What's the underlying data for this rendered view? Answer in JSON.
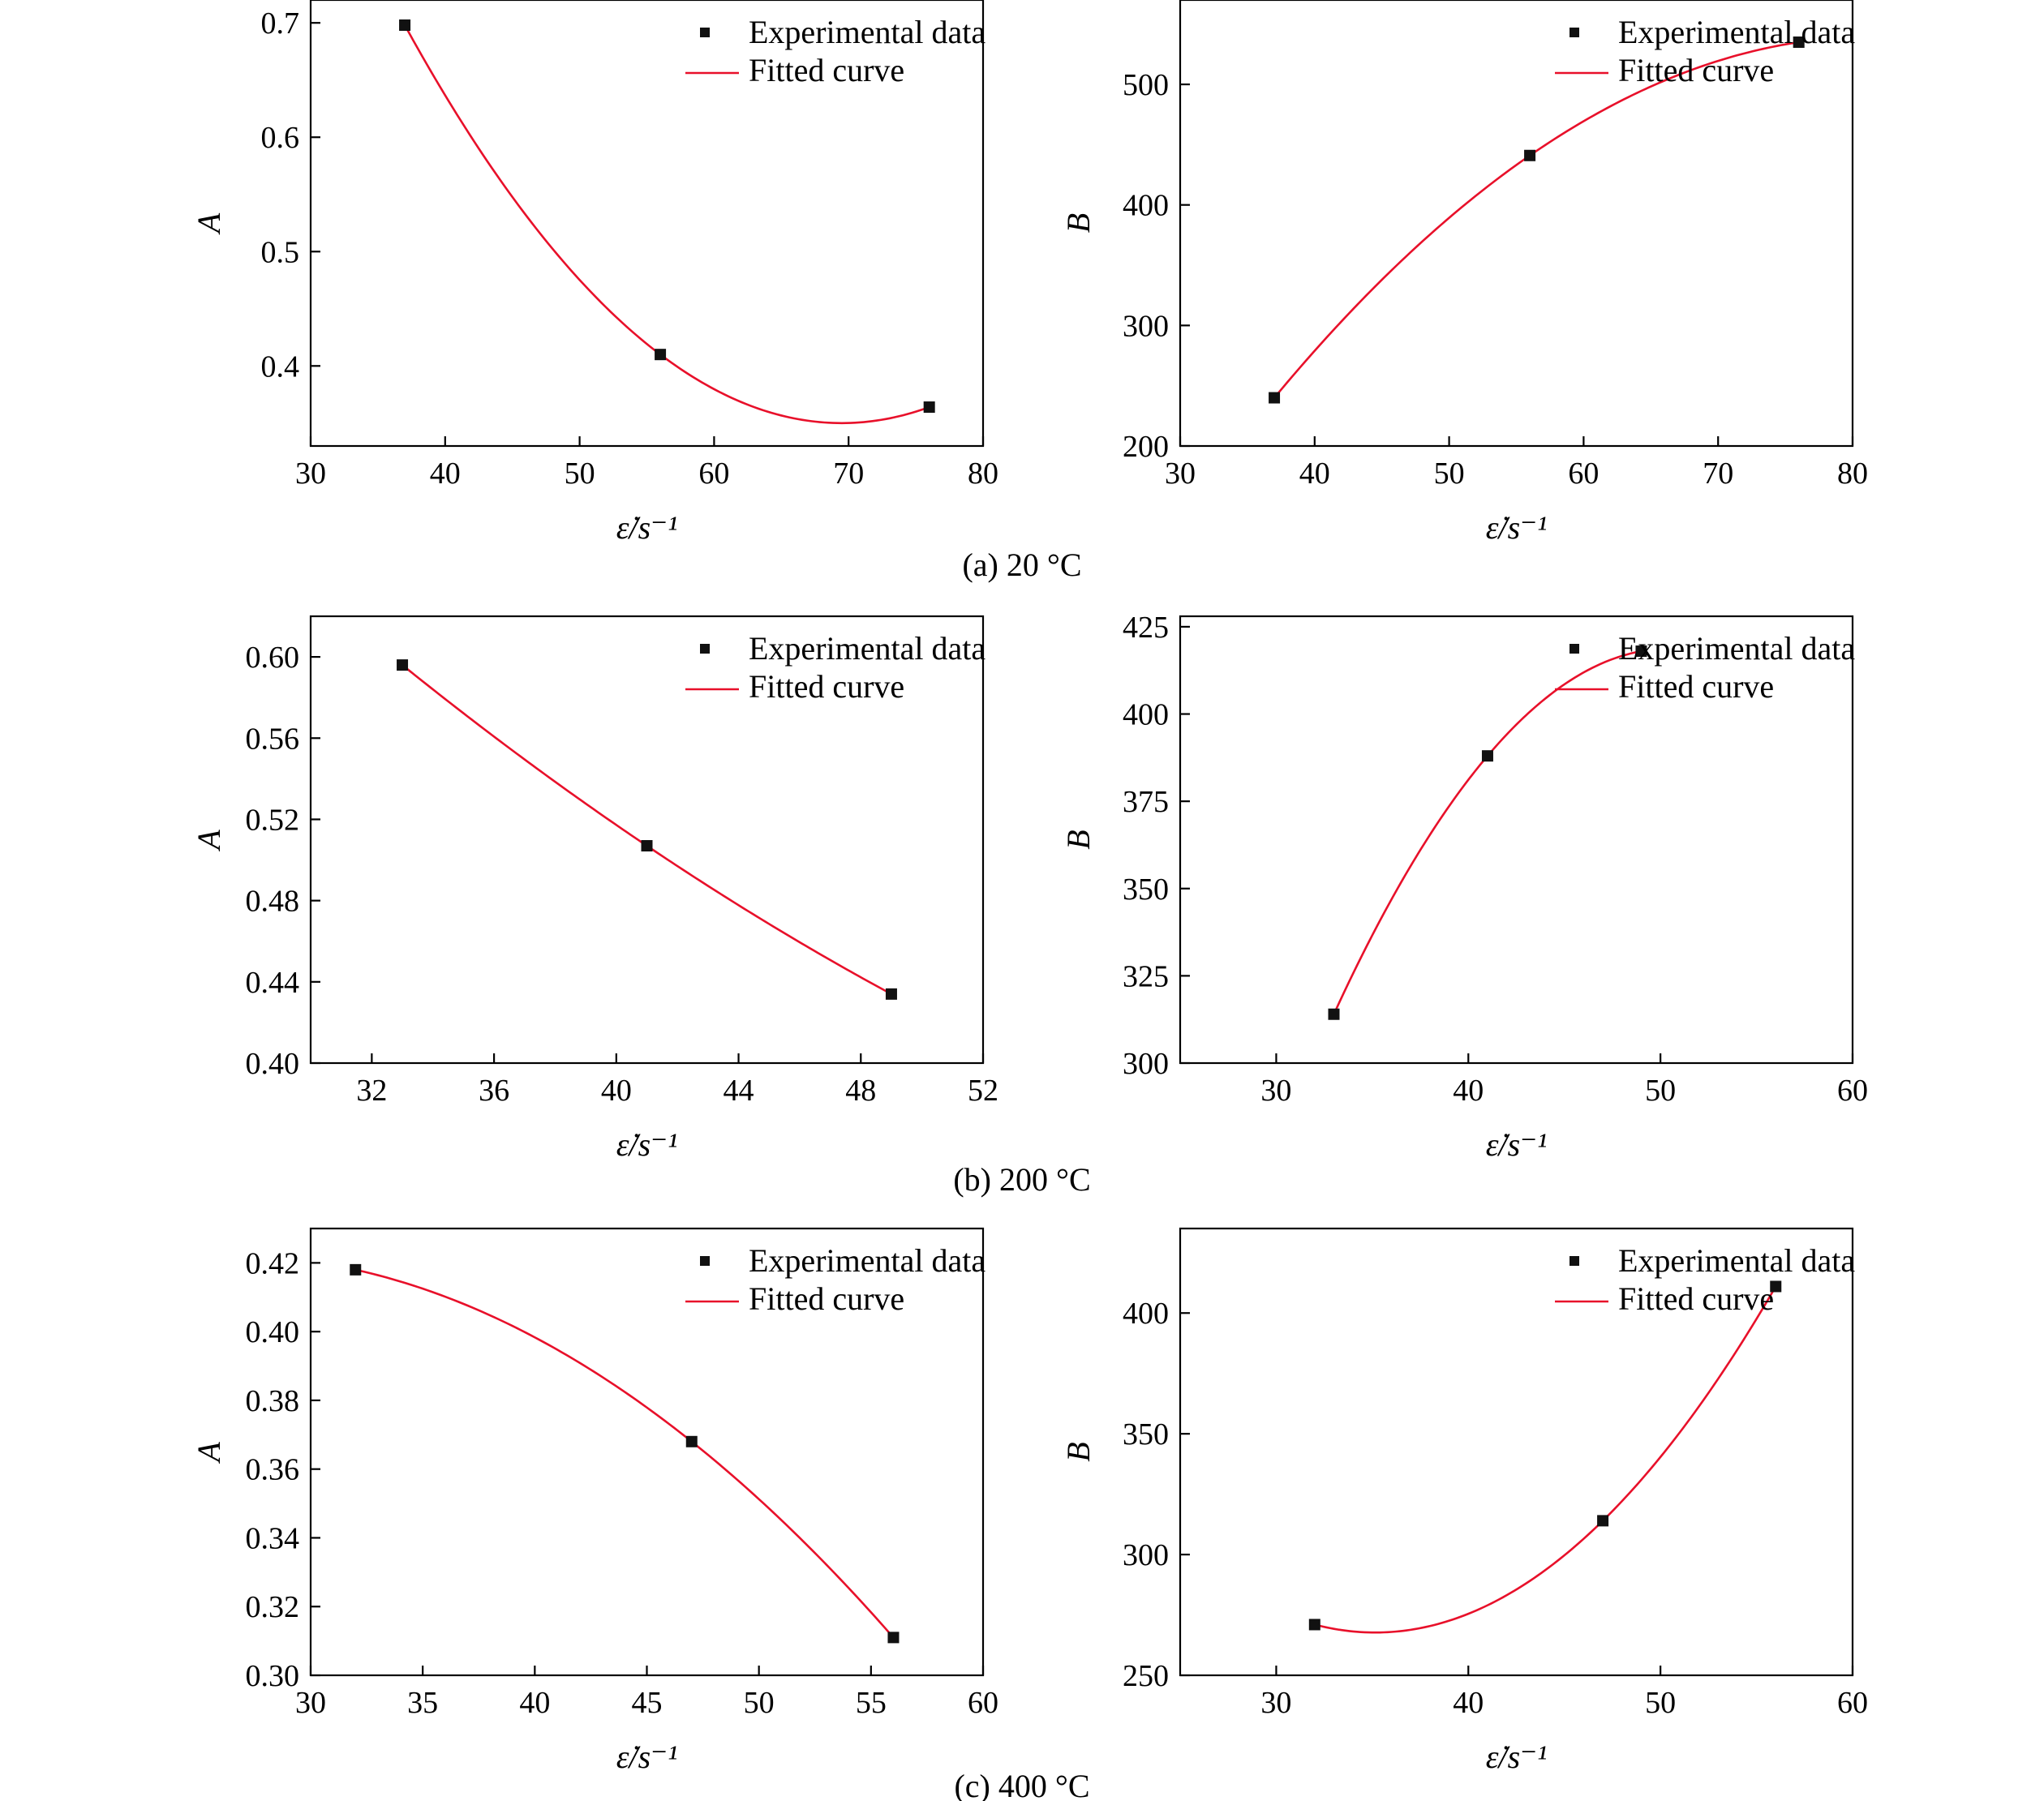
{
  "legend": {
    "marker_label": "Experimental data",
    "line_label": "Fitted curve"
  },
  "colors": {
    "curve": "#e8102a",
    "marker": "#111111",
    "axis": "#000000"
  },
  "captions": [
    "(a) 20 °C",
    "(b) 200 °C",
    "(c) 400 °C"
  ],
  "chart_data": [
    {
      "type": "scatter",
      "panel": "(a) 20 °C",
      "ylabel": "A",
      "xlabel": "ε̇/s⁻¹",
      "xlim": [
        30,
        80
      ],
      "ylim": [
        0.33,
        0.72
      ],
      "xticks": [
        30,
        40,
        50,
        60,
        70,
        80
      ],
      "xtick_labels": [
        "30",
        "40",
        "50",
        "60",
        "70",
        "80"
      ],
      "yticks": [
        0.4,
        0.5,
        0.6,
        0.7
      ],
      "ytick_labels": [
        "0.4",
        "0.5",
        "0.6",
        "0.7"
      ],
      "legend_position": "top-right",
      "series": [
        {
          "name": "Experimental data",
          "x": [
            37,
            56,
            76
          ],
          "y": [
            0.698,
            0.41,
            0.364
          ]
        },
        {
          "name": "Fitted curve",
          "fit": "quadratic"
        }
      ]
    },
    {
      "type": "scatter",
      "panel": "(a) 20 °C",
      "ylabel": "B",
      "xlabel": "ε̇/s⁻¹",
      "xlim": [
        30,
        80
      ],
      "ylim": [
        200,
        570
      ],
      "xticks": [
        30,
        40,
        50,
        60,
        70,
        80
      ],
      "xtick_labels": [
        "30",
        "40",
        "50",
        "60",
        "70",
        "80"
      ],
      "yticks": [
        200,
        300,
        400,
        500
      ],
      "ytick_labels": [
        "200",
        "300",
        "400",
        "500"
      ],
      "legend_position": "top-right",
      "series": [
        {
          "name": "Experimental data",
          "x": [
            37,
            56,
            76
          ],
          "y": [
            240,
            441,
            535
          ]
        },
        {
          "name": "Fitted curve",
          "fit": "quadratic"
        }
      ]
    },
    {
      "type": "scatter",
      "panel": "(b) 200 °C",
      "ylabel": "A",
      "xlabel": "ε̇/s⁻¹",
      "xlim": [
        30,
        52
      ],
      "ylim": [
        0.4,
        0.62
      ],
      "xticks": [
        32,
        36,
        40,
        44,
        48,
        52
      ],
      "xtick_labels": [
        "32",
        "36",
        "40",
        "44",
        "48",
        "52"
      ],
      "yticks": [
        0.4,
        0.44,
        0.48,
        0.52,
        0.56,
        0.6
      ],
      "ytick_labels": [
        "0.40",
        "0.44",
        "0.48",
        "0.52",
        "0.56",
        "0.60"
      ],
      "legend_position": "top-right",
      "series": [
        {
          "name": "Experimental data",
          "x": [
            33,
            41,
            49
          ],
          "y": [
            0.596,
            0.507,
            0.434
          ]
        },
        {
          "name": "Fitted curve",
          "fit": "quadratic"
        }
      ]
    },
    {
      "type": "scatter",
      "panel": "(b) 200 °C",
      "ylabel": "B",
      "xlabel": "ε̇/s⁻¹",
      "xlim": [
        25,
        60
      ],
      "ylim": [
        300,
        428
      ],
      "xticks": [
        30,
        40,
        50,
        60
      ],
      "xtick_labels": [
        "30",
        "40",
        "50",
        "60"
      ],
      "yticks": [
        300,
        325,
        350,
        375,
        400,
        425
      ],
      "ytick_labels": [
        "300",
        "325",
        "350",
        "375",
        "400",
        "425"
      ],
      "legend_position": "top-right",
      "series": [
        {
          "name": "Experimental data",
          "x": [
            33,
            41,
            49
          ],
          "y": [
            314,
            388,
            418
          ]
        },
        {
          "name": "Fitted curve",
          "fit": "quadratic"
        }
      ]
    },
    {
      "type": "scatter",
      "panel": "(c) 400 °C",
      "ylabel": "A",
      "xlabel": "ε̇/s⁻¹",
      "xlim": [
        30,
        60
      ],
      "ylim": [
        0.3,
        0.43
      ],
      "xticks": [
        30,
        35,
        40,
        45,
        50,
        55,
        60
      ],
      "xtick_labels": [
        "30",
        "35",
        "40",
        "45",
        "50",
        "55",
        "60"
      ],
      "yticks": [
        0.3,
        0.32,
        0.34,
        0.36,
        0.38,
        0.4,
        0.42
      ],
      "ytick_labels": [
        "0.30",
        "0.32",
        "0.34",
        "0.36",
        "0.38",
        "0.40",
        "0.42"
      ],
      "legend_position": "top-right",
      "series": [
        {
          "name": "Experimental data",
          "x": [
            32,
            47,
            56
          ],
          "y": [
            0.418,
            0.368,
            0.311
          ]
        },
        {
          "name": "Fitted curve",
          "fit": "quadratic"
        }
      ]
    },
    {
      "type": "scatter",
      "panel": "(c) 400 °C",
      "ylabel": "B",
      "xlabel": "ε̇/s⁻¹",
      "xlim": [
        25,
        60
      ],
      "ylim": [
        250,
        435
      ],
      "xticks": [
        30,
        40,
        50,
        60
      ],
      "xtick_labels": [
        "30",
        "40",
        "50",
        "60"
      ],
      "yticks": [
        250,
        300,
        350,
        400
      ],
      "ytick_labels": [
        "250",
        "300",
        "350",
        "400"
      ],
      "legend_position": "top-right",
      "series": [
        {
          "name": "Experimental data",
          "x": [
            32,
            47,
            56
          ],
          "y": [
            271,
            314,
            411
          ]
        },
        {
          "name": "Fitted curve",
          "fit": "quadratic"
        }
      ]
    }
  ]
}
